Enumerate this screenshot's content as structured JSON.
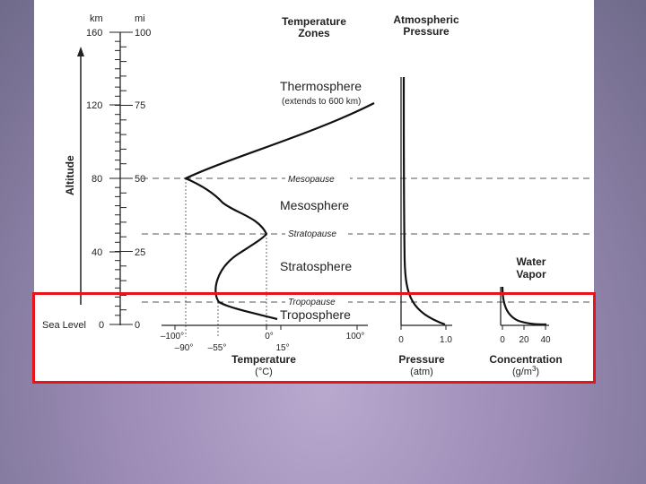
{
  "axes": {
    "km_label": "km",
    "mi_label": "mi",
    "altitude_label": "Altitude",
    "sea_level_label": "Sea Level",
    "km_ticks": [
      "160",
      "120",
      "80",
      "40",
      "0"
    ],
    "mi_ticks": [
      "100",
      "75",
      "50",
      "25",
      "0"
    ]
  },
  "headers": {
    "temp_zones_line1": "Temperature",
    "temp_zones_line2": "Zones",
    "atm_pressure_line1": "Atmospheric",
    "atm_pressure_line2": "Pressure",
    "water_vapor_line1": "Water",
    "water_vapor_line2": "Vapor"
  },
  "zones": {
    "thermosphere": "Thermosphere",
    "thermosphere_note": "(extends to 600 km)",
    "mesosphere": "Mesosphere",
    "stratosphere": "Stratosphere",
    "troposphere": "Troposphere"
  },
  "boundaries": {
    "mesopause": "Mesopause",
    "stratopause": "Stratopause",
    "tropopause": "Tropopause"
  },
  "temperature_axis": {
    "upper_ticks": [
      "–100°",
      "0°",
      "100°"
    ],
    "lower_ticks": [
      "–90°",
      "–55°",
      "15°"
    ],
    "title": "Temperature",
    "unit": "(°C)"
  },
  "pressure_axis": {
    "ticks": [
      "0",
      "1.0"
    ],
    "title": "Pressure",
    "unit": "(atm)"
  },
  "concentration_axis": {
    "ticks": [
      "0",
      "20",
      "40"
    ],
    "title": "Concentration",
    "unit_prefix": "(g/m",
    "unit_exp": "3",
    "unit_suffix": ")"
  },
  "highlight": {
    "color": "#e8141b"
  }
}
